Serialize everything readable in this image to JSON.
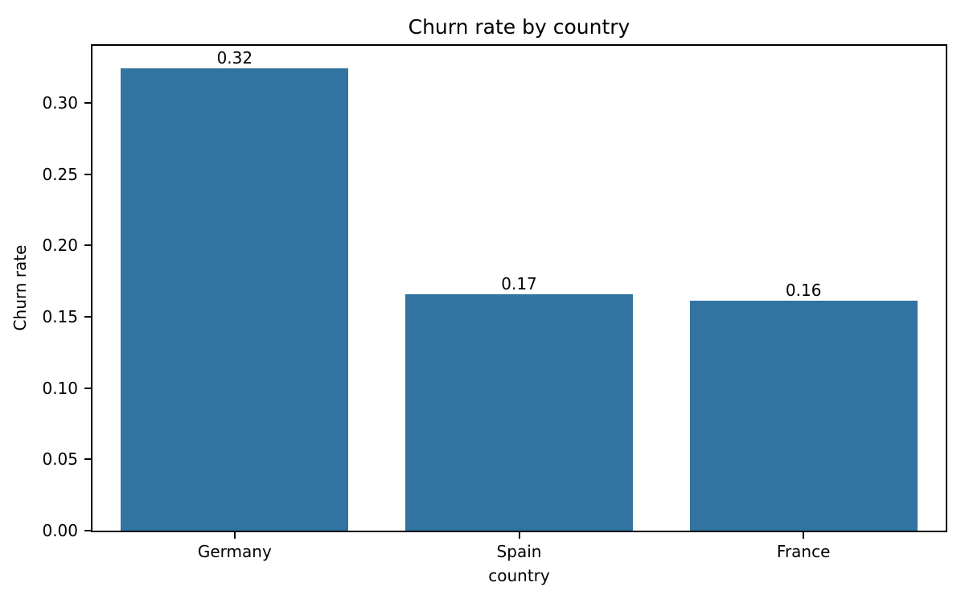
{
  "figure": {
    "background": "#ffffff",
    "text_color": "#000000",
    "axis_color": "#000000"
  },
  "chart_data": {
    "type": "bar",
    "title": "Churn rate by country",
    "xlabel": "country",
    "ylabel": "Churn rate",
    "categories": [
      "Germany",
      "Spain",
      "France"
    ],
    "values": [
      0.324,
      0.166,
      0.161
    ],
    "bar_value_labels": [
      "0.32",
      "0.17",
      "0.16"
    ],
    "bar_color": "#3274a1",
    "bar_width_fraction": 0.8,
    "ylim": [
      0,
      0.34
    ],
    "yticks": [
      0.0,
      0.05,
      0.1,
      0.15,
      0.2,
      0.25,
      0.3
    ],
    "ytick_labels": [
      "0.00",
      "0.05",
      "0.10",
      "0.15",
      "0.20",
      "0.25",
      "0.30"
    ],
    "grid": false,
    "legend": "none"
  }
}
